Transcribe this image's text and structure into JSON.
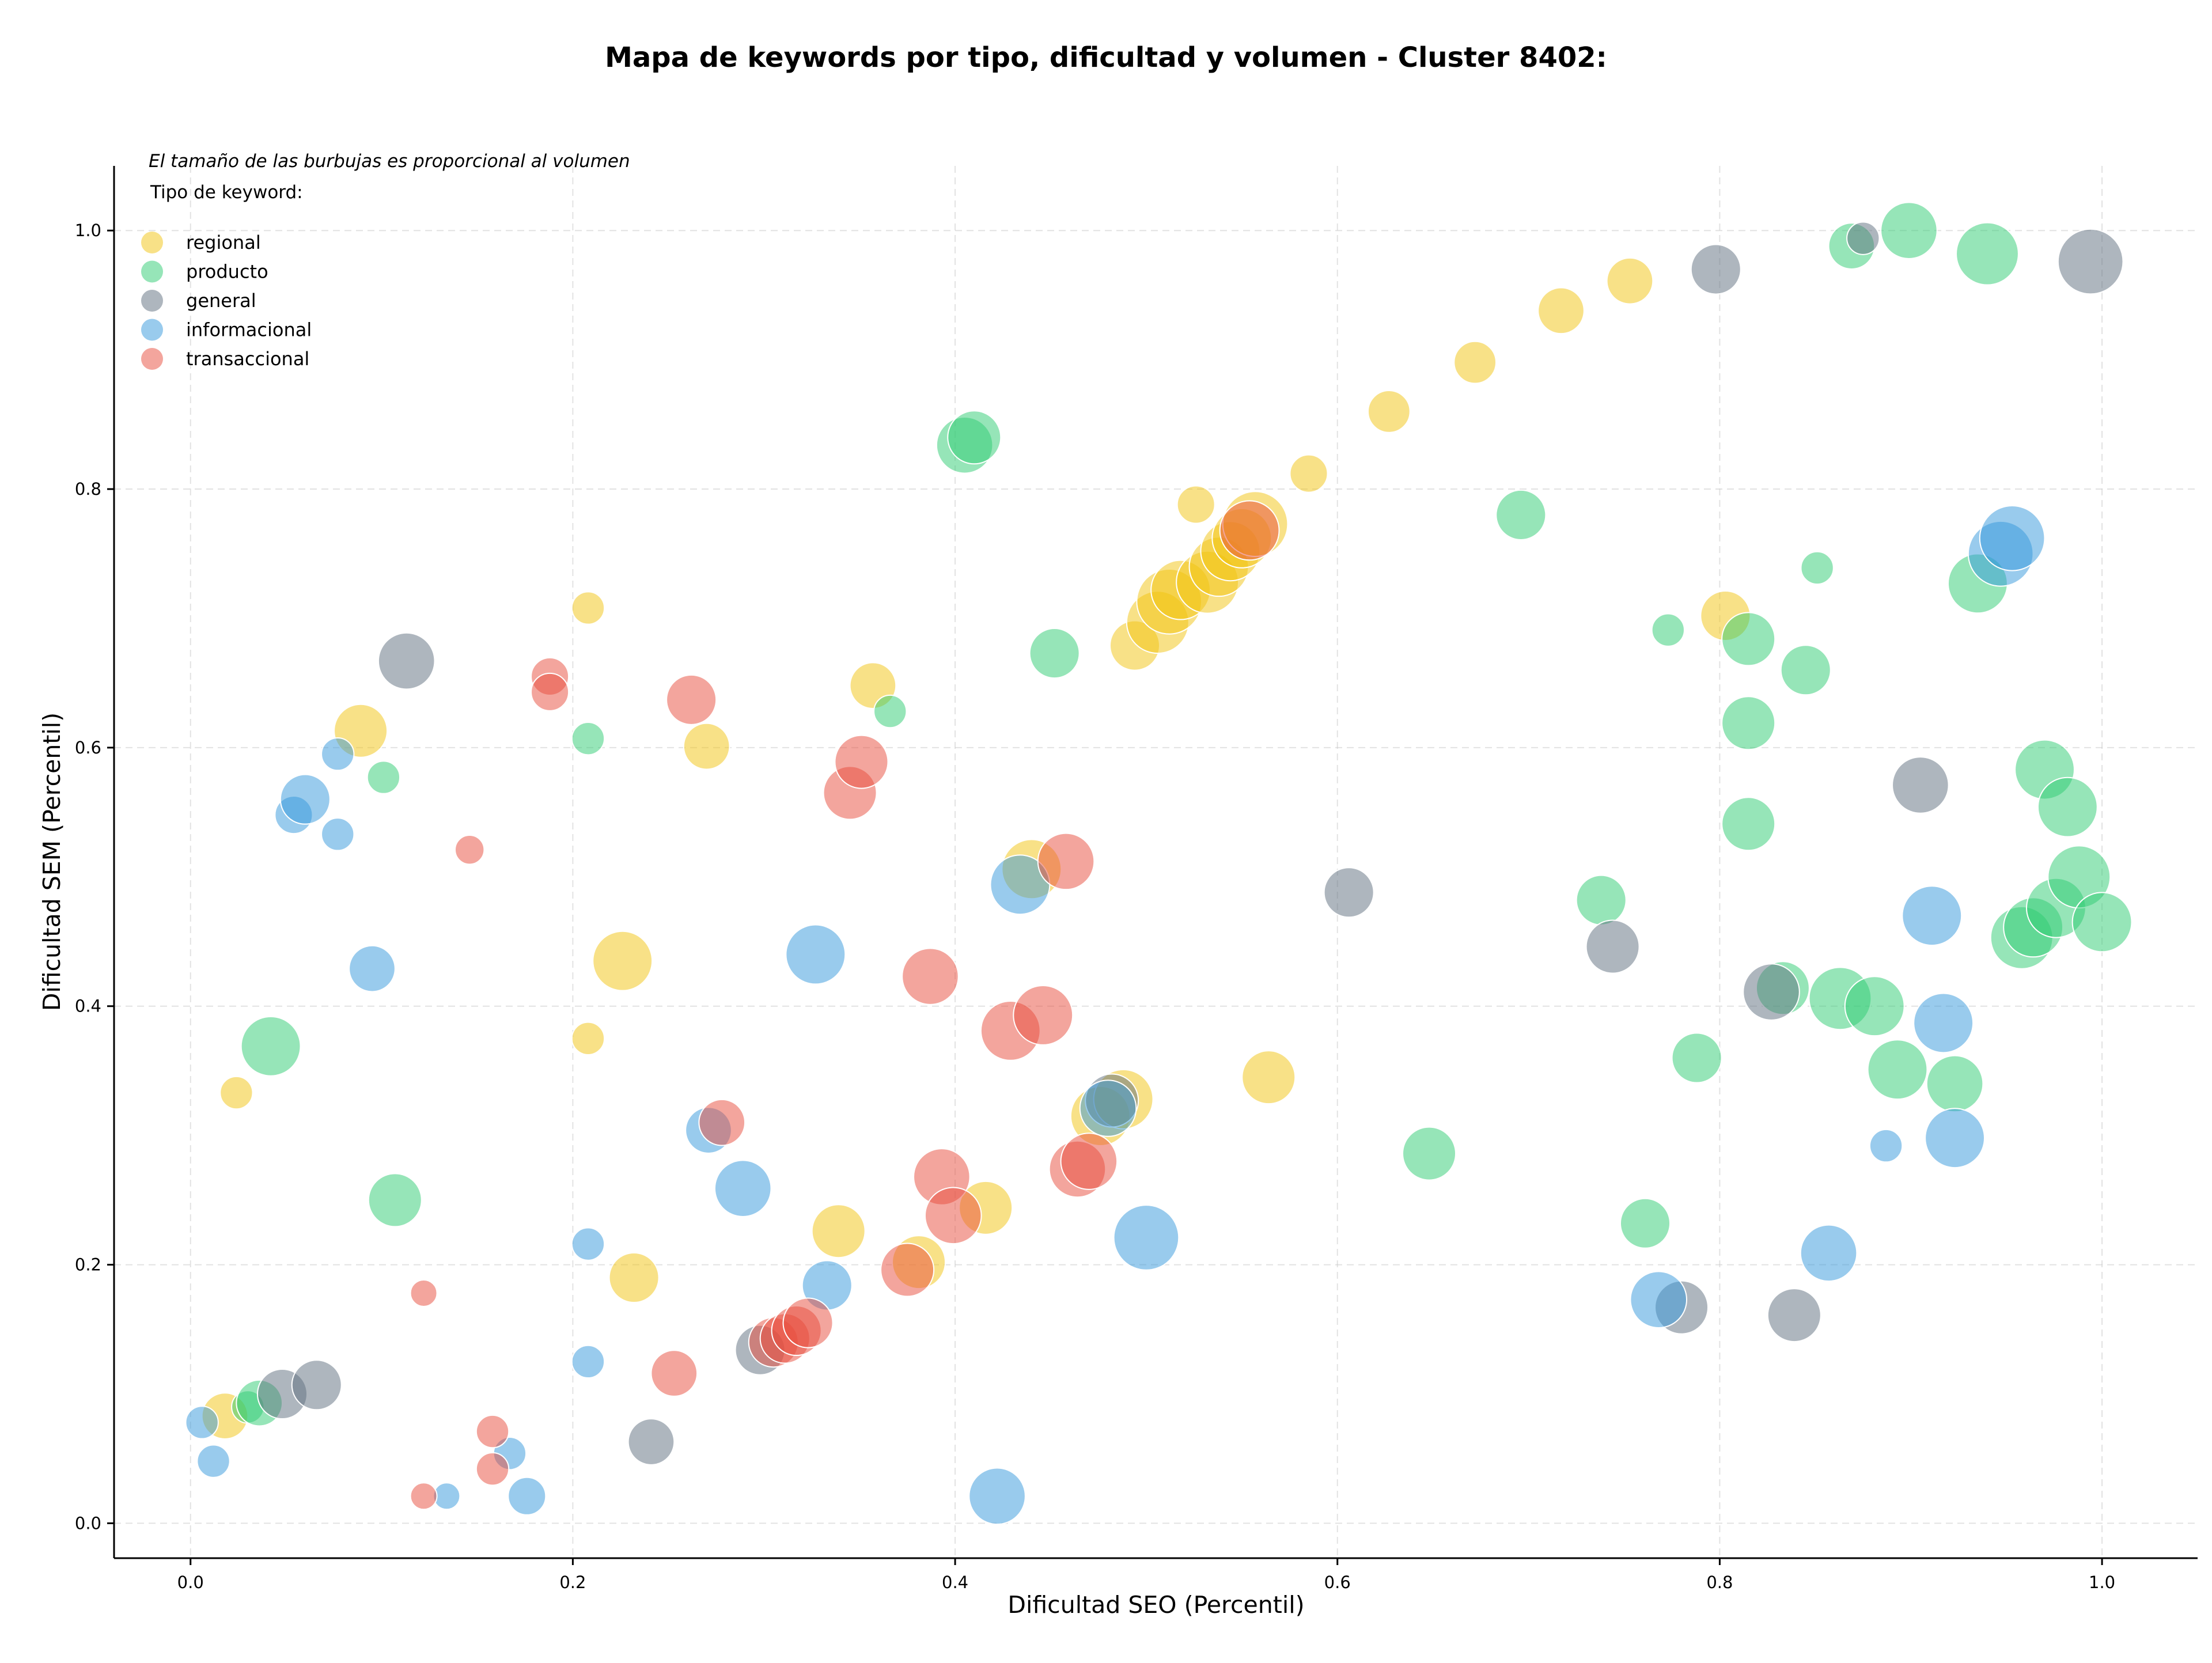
{
  "chart_data": {
    "type": "scatter",
    "title": "Mapa de keywords por tipo, dificultad y volumen - Cluster 8402:",
    "xlabel": "Dificultad SEO (Percentil)",
    "ylabel": "Dificultad SEM (Percentil)",
    "xlim": [
      -0.04,
      1.05
    ],
    "ylim": [
      -0.027,
      1.05
    ],
    "xticks": [
      0.0,
      0.2,
      0.4,
      0.6,
      0.8,
      1.0
    ],
    "yticks": [
      0.0,
      0.2,
      0.4,
      0.6,
      0.8,
      1.0
    ],
    "xtick_labels": [
      "0.0",
      "0.2",
      "0.4",
      "0.6",
      "0.8",
      "1.0"
    ],
    "ytick_labels": [
      "0.0",
      "0.2",
      "0.4",
      "0.6",
      "0.8",
      "1.0"
    ],
    "grid": true,
    "note": "El tamaño de las burbujas es proporcional al volumen",
    "legend_title": "Tipo de keyword:",
    "legend_position": "top-left",
    "series": [
      {
        "name": "regional",
        "color": "#f1c40f",
        "points": [
          {
            "x": 0.018,
            "y": 0.083,
            "size": 3
          },
          {
            "x": 0.024,
            "y": 0.333,
            "size": 1.5
          },
          {
            "x": 0.089,
            "y": 0.613,
            "size": 4
          },
          {
            "x": 0.208,
            "y": 0.708,
            "size": 1.5
          },
          {
            "x": 0.208,
            "y": 0.375,
            "size": 1.5
          },
          {
            "x": 0.226,
            "y": 0.435,
            "size": 5
          },
          {
            "x": 0.232,
            "y": 0.19,
            "size": 3.5
          },
          {
            "x": 0.27,
            "y": 0.601,
            "size": 3
          },
          {
            "x": 0.339,
            "y": 0.226,
            "size": 4
          },
          {
            "x": 0.357,
            "y": 0.648,
            "size": 3
          },
          {
            "x": 0.381,
            "y": 0.202,
            "size": 4
          },
          {
            "x": 0.416,
            "y": 0.244,
            "size": 4
          },
          {
            "x": 0.44,
            "y": 0.506,
            "size": 5
          },
          {
            "x": 0.476,
            "y": 0.315,
            "size": 5
          },
          {
            "x": 0.488,
            "y": 0.328,
            "size": 5
          },
          {
            "x": 0.494,
            "y": 0.679,
            "size": 3.5
          },
          {
            "x": 0.506,
            "y": 0.697,
            "size": 5.5
          },
          {
            "x": 0.512,
            "y": 0.713,
            "size": 6
          },
          {
            "x": 0.518,
            "y": 0.722,
            "size": 5
          },
          {
            "x": 0.526,
            "y": 0.788,
            "size": 2
          },
          {
            "x": 0.532,
            "y": 0.728,
            "size": 5.5
          },
          {
            "x": 0.538,
            "y": 0.74,
            "size": 5
          },
          {
            "x": 0.544,
            "y": 0.752,
            "size": 5
          },
          {
            "x": 0.55,
            "y": 0.762,
            "size": 5
          },
          {
            "x": 0.557,
            "y": 0.773,
            "size": 6
          },
          {
            "x": 0.564,
            "y": 0.345,
            "size": 4
          },
          {
            "x": 0.585,
            "y": 0.812,
            "size": 2
          },
          {
            "x": 0.627,
            "y": 0.86,
            "size": 2.5
          },
          {
            "x": 0.672,
            "y": 0.898,
            "size": 2.5
          },
          {
            "x": 0.717,
            "y": 0.938,
            "size": 3
          },
          {
            "x": 0.753,
            "y": 0.961,
            "size": 3
          },
          {
            "x": 0.803,
            "y": 0.702,
            "size": 3.5
          }
        ]
      },
      {
        "name": "producto",
        "color": "#2ecc71",
        "points": [
          {
            "x": 0.03,
            "y": 0.09,
            "size": 1.5
          },
          {
            "x": 0.036,
            "y": 0.093,
            "size": 3
          },
          {
            "x": 0.042,
            "y": 0.369,
            "size": 5
          },
          {
            "x": 0.101,
            "y": 0.577,
            "size": 1.5
          },
          {
            "x": 0.107,
            "y": 0.25,
            "size": 4
          },
          {
            "x": 0.208,
            "y": 0.607,
            "size": 1.5
          },
          {
            "x": 0.366,
            "y": 0.628,
            "size": 1.5
          },
          {
            "x": 0.405,
            "y": 0.834,
            "size": 4.5
          },
          {
            "x": 0.41,
            "y": 0.84,
            "size": 4
          },
          {
            "x": 0.452,
            "y": 0.673,
            "size": 3.5
          },
          {
            "x": 0.648,
            "y": 0.286,
            "size": 4
          },
          {
            "x": 0.696,
            "y": 0.78,
            "size": 3.5
          },
          {
            "x": 0.738,
            "y": 0.482,
            "size": 3.5
          },
          {
            "x": 0.761,
            "y": 0.232,
            "size": 3.5
          },
          {
            "x": 0.773,
            "y": 0.691,
            "size": 1.5
          },
          {
            "x": 0.788,
            "y": 0.36,
            "size": 3.5
          },
          {
            "x": 0.815,
            "y": 0.684,
            "size": 4
          },
          {
            "x": 0.815,
            "y": 0.619,
            "size": 4
          },
          {
            "x": 0.815,
            "y": 0.541,
            "size": 4
          },
          {
            "x": 0.833,
            "y": 0.414,
            "size": 4
          },
          {
            "x": 0.845,
            "y": 0.66,
            "size": 3.5
          },
          {
            "x": 0.851,
            "y": 0.739,
            "size": 1.5
          },
          {
            "x": 0.863,
            "y": 0.406,
            "size": 5.5
          },
          {
            "x": 0.869,
            "y": 0.988,
            "size": 3
          },
          {
            "x": 0.881,
            "y": 0.4,
            "size": 5
          },
          {
            "x": 0.893,
            "y": 0.351,
            "size": 5
          },
          {
            "x": 0.899,
            "y": 1.0,
            "size": 4.5
          },
          {
            "x": 0.923,
            "y": 0.34,
            "size": 4.5
          },
          {
            "x": 0.935,
            "y": 0.727,
            "size": 5
          },
          {
            "x": 0.94,
            "y": 0.982,
            "size": 5.5
          },
          {
            "x": 0.958,
            "y": 0.453,
            "size": 5.5
          },
          {
            "x": 0.964,
            "y": 0.461,
            "size": 5
          },
          {
            "x": 0.97,
            "y": 0.583,
            "size": 5
          },
          {
            "x": 0.976,
            "y": 0.476,
            "size": 5
          },
          {
            "x": 0.982,
            "y": 0.554,
            "size": 5
          },
          {
            "x": 0.988,
            "y": 0.5,
            "size": 5.5
          },
          {
            "x": 1.0,
            "y": 0.465,
            "size": 5
          }
        ]
      },
      {
        "name": "general",
        "color": "#5d6d7e",
        "points": [
          {
            "x": 0.048,
            "y": 0.1,
            "size": 3.5
          },
          {
            "x": 0.066,
            "y": 0.107,
            "size": 3.5
          },
          {
            "x": 0.113,
            "y": 0.667,
            "size": 4.5
          },
          {
            "x": 0.241,
            "y": 0.063,
            "size": 3
          },
          {
            "x": 0.298,
            "y": 0.134,
            "size": 3.5
          },
          {
            "x": 0.482,
            "y": 0.327,
            "size": 4
          },
          {
            "x": 0.606,
            "y": 0.488,
            "size": 3.5
          },
          {
            "x": 0.744,
            "y": 0.446,
            "size": 4
          },
          {
            "x": 0.78,
            "y": 0.167,
            "size": 4
          },
          {
            "x": 0.798,
            "y": 0.97,
            "size": 3.5
          },
          {
            "x": 0.827,
            "y": 0.411,
            "size": 4.5
          },
          {
            "x": 0.839,
            "y": 0.161,
            "size": 4
          },
          {
            "x": 0.875,
            "y": 0.994,
            "size": 1.5
          },
          {
            "x": 0.905,
            "y": 0.571,
            "size": 4.5
          },
          {
            "x": 0.994,
            "y": 0.976,
            "size": 6
          }
        ]
      },
      {
        "name": "informacional",
        "color": "#3498db",
        "points": [
          {
            "x": 0.006,
            "y": 0.078,
            "size": 1.5
          },
          {
            "x": 0.012,
            "y": 0.048,
            "size": 1.5
          },
          {
            "x": 0.054,
            "y": 0.548,
            "size": 2
          },
          {
            "x": 0.06,
            "y": 0.56,
            "size": 3.5
          },
          {
            "x": 0.077,
            "y": 0.595,
            "size": 1.5
          },
          {
            "x": 0.077,
            "y": 0.533,
            "size": 1.5
          },
          {
            "x": 0.095,
            "y": 0.429,
            "size": 3
          },
          {
            "x": 0.134,
            "y": 0.021,
            "size": 1
          },
          {
            "x": 0.167,
            "y": 0.054,
            "size": 1.5
          },
          {
            "x": 0.176,
            "y": 0.021,
            "size": 2
          },
          {
            "x": 0.208,
            "y": 0.216,
            "size": 1.5
          },
          {
            "x": 0.208,
            "y": 0.125,
            "size": 1.5
          },
          {
            "x": 0.271,
            "y": 0.304,
            "size": 3
          },
          {
            "x": 0.289,
            "y": 0.259,
            "size": 4.5
          },
          {
            "x": 0.327,
            "y": 0.44,
            "size": 5
          },
          {
            "x": 0.333,
            "y": 0.184,
            "size": 3.5
          },
          {
            "x": 0.422,
            "y": 0.021,
            "size": 4.5
          },
          {
            "x": 0.434,
            "y": 0.494,
            "size": 5
          },
          {
            "x": 0.48,
            "y": 0.321,
            "size": 4.5
          },
          {
            "x": 0.5,
            "y": 0.221,
            "size": 6
          },
          {
            "x": 0.768,
            "y": 0.173,
            "size": 4.5
          },
          {
            "x": 0.857,
            "y": 0.209,
            "size": 4.5
          },
          {
            "x": 0.887,
            "y": 0.292,
            "size": 1.5
          },
          {
            "x": 0.911,
            "y": 0.47,
            "size": 5
          },
          {
            "x": 0.917,
            "y": 0.387,
            "size": 5
          },
          {
            "x": 0.923,
            "y": 0.298,
            "size": 5
          },
          {
            "x": 0.947,
            "y": 0.75,
            "size": 6
          },
          {
            "x": 0.953,
            "y": 0.762,
            "size": 6
          }
        ]
      },
      {
        "name": "transaccional",
        "color": "#e74c3c",
        "points": [
          {
            "x": 0.122,
            "y": 0.178,
            "size": 1
          },
          {
            "x": 0.122,
            "y": 0.021,
            "size": 1
          },
          {
            "x": 0.146,
            "y": 0.521,
            "size": 1.2
          },
          {
            "x": 0.158,
            "y": 0.071,
            "size": 1.5
          },
          {
            "x": 0.158,
            "y": 0.042,
            "size": 1.5
          },
          {
            "x": 0.188,
            "y": 0.655,
            "size": 2
          },
          {
            "x": 0.188,
            "y": 0.643,
            "size": 2
          },
          {
            "x": 0.253,
            "y": 0.116,
            "size": 3
          },
          {
            "x": 0.262,
            "y": 0.637,
            "size": 3.5
          },
          {
            "x": 0.278,
            "y": 0.31,
            "size": 3
          },
          {
            "x": 0.305,
            "y": 0.14,
            "size": 3.5
          },
          {
            "x": 0.311,
            "y": 0.143,
            "size": 3.5
          },
          {
            "x": 0.317,
            "y": 0.149,
            "size": 3.5
          },
          {
            "x": 0.323,
            "y": 0.155,
            "size": 3.5
          },
          {
            "x": 0.345,
            "y": 0.565,
            "size": 4
          },
          {
            "x": 0.351,
            "y": 0.589,
            "size": 4
          },
          {
            "x": 0.375,
            "y": 0.196,
            "size": 4
          },
          {
            "x": 0.387,
            "y": 0.423,
            "size": 4.5
          },
          {
            "x": 0.393,
            "y": 0.268,
            "size": 4.5
          },
          {
            "x": 0.399,
            "y": 0.238,
            "size": 4.5
          },
          {
            "x": 0.429,
            "y": 0.381,
            "size": 5
          },
          {
            "x": 0.446,
            "y": 0.393,
            "size": 5
          },
          {
            "x": 0.458,
            "y": 0.512,
            "size": 4.5
          },
          {
            "x": 0.464,
            "y": 0.274,
            "size": 4.5
          },
          {
            "x": 0.47,
            "y": 0.28,
            "size": 4.5
          },
          {
            "x": 0.554,
            "y": 0.768,
            "size": 5
          }
        ]
      }
    ]
  }
}
